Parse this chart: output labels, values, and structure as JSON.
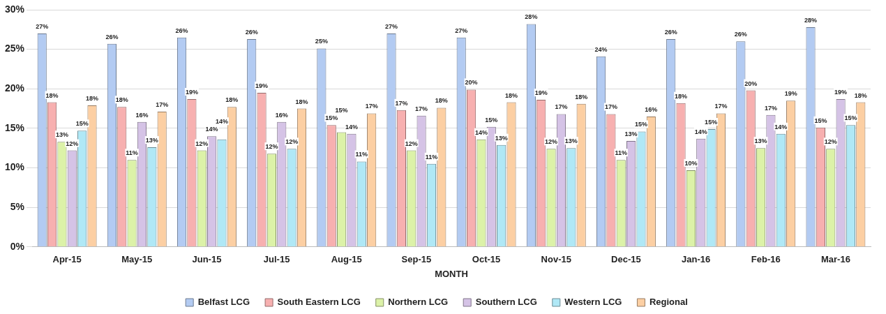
{
  "chart_data": {
    "type": "bar",
    "xlabel": "MONTH",
    "categories": [
      "Apr-15",
      "May-15",
      "Jun-15",
      "Jul-15",
      "Aug-15",
      "Sep-15",
      "Oct-15",
      "Nov-15",
      "Dec-15",
      "Jan-16",
      "Feb-16",
      "Mar-16"
    ],
    "series": [
      {
        "name": "Belfast LCG",
        "color": "#b3cbf2",
        "values": [
          27.0,
          25.7,
          26.5,
          26.3,
          25.1,
          27.0,
          26.5,
          28.2,
          24.1,
          26.3,
          26.0,
          27.8
        ],
        "value_labels": [
          "27%",
          "26%",
          "26%",
          "26%",
          "25%",
          "27%",
          "27%",
          "28%",
          "24%",
          "26%",
          "26%",
          "28%"
        ]
      },
      {
        "name": "South Eastern LCG",
        "color": "#f7b0b0",
        "values": [
          18.3,
          17.7,
          18.7,
          19.5,
          15.4,
          17.3,
          19.9,
          18.6,
          16.8,
          18.2,
          19.8,
          15.1
        ],
        "value_labels": [
          "18%",
          "18%",
          "19%",
          "19%",
          "15%",
          "17%",
          "20%",
          "19%",
          "17%",
          "18%",
          "20%",
          "15%"
        ]
      },
      {
        "name": "Northern LCG",
        "color": "#dcf2a8",
        "values": [
          13.3,
          11.0,
          12.2,
          11.8,
          14.5,
          12.2,
          13.6,
          12.4,
          11.0,
          9.7,
          12.5,
          12.4
        ],
        "value_labels": [
          "13%",
          "11%",
          "12%",
          "12%",
          "15%",
          "12%",
          "14%",
          "12%",
          "11%",
          "10%",
          "13%",
          "12%"
        ]
      },
      {
        "name": "Southern LCG",
        "color": "#d5c3e6",
        "values": [
          12.2,
          15.8,
          14.0,
          15.8,
          14.3,
          16.6,
          15.2,
          16.8,
          13.4,
          13.7,
          16.7,
          18.7
        ],
        "value_labels": [
          "12%",
          "16%",
          "14%",
          "16%",
          "14%",
          "17%",
          "15%",
          "17%",
          "13%",
          "14%",
          "17%",
          "19%"
        ]
      },
      {
        "name": "Western LCG",
        "color": "#b0e8f6",
        "values": [
          14.7,
          12.6,
          13.6,
          12.4,
          10.8,
          10.5,
          12.9,
          12.5,
          14.6,
          14.9,
          14.3,
          15.4
        ],
        "value_labels": [
          "15%",
          "13%",
          "14%",
          "12%",
          "11%",
          "11%",
          "13%",
          "13%",
          "15%",
          "15%",
          "14%",
          "15%"
        ]
      },
      {
        "name": "Regional",
        "color": "#fccfa3",
        "values": [
          17.9,
          17.1,
          17.7,
          17.5,
          16.9,
          17.6,
          18.3,
          18.1,
          16.5,
          16.9,
          18.5,
          18.3
        ],
        "value_labels": [
          "18%",
          "17%",
          "18%",
          "18%",
          "17%",
          "18%",
          "18%",
          "18%",
          "16%",
          "17%",
          "19%",
          "18%"
        ]
      }
    ],
    "ylim": [
      0,
      30
    ],
    "yticks": [
      {
        "value": 0,
        "label": "0%"
      },
      {
        "value": 5,
        "label": "5%"
      },
      {
        "value": 10,
        "label": "10%"
      },
      {
        "value": 15,
        "label": "15%"
      },
      {
        "value": 20,
        "label": "20%"
      },
      {
        "value": 25,
        "label": "25%"
      },
      {
        "value": 30,
        "label": "30%"
      }
    ],
    "grid": "y",
    "legend": "bottom"
  }
}
